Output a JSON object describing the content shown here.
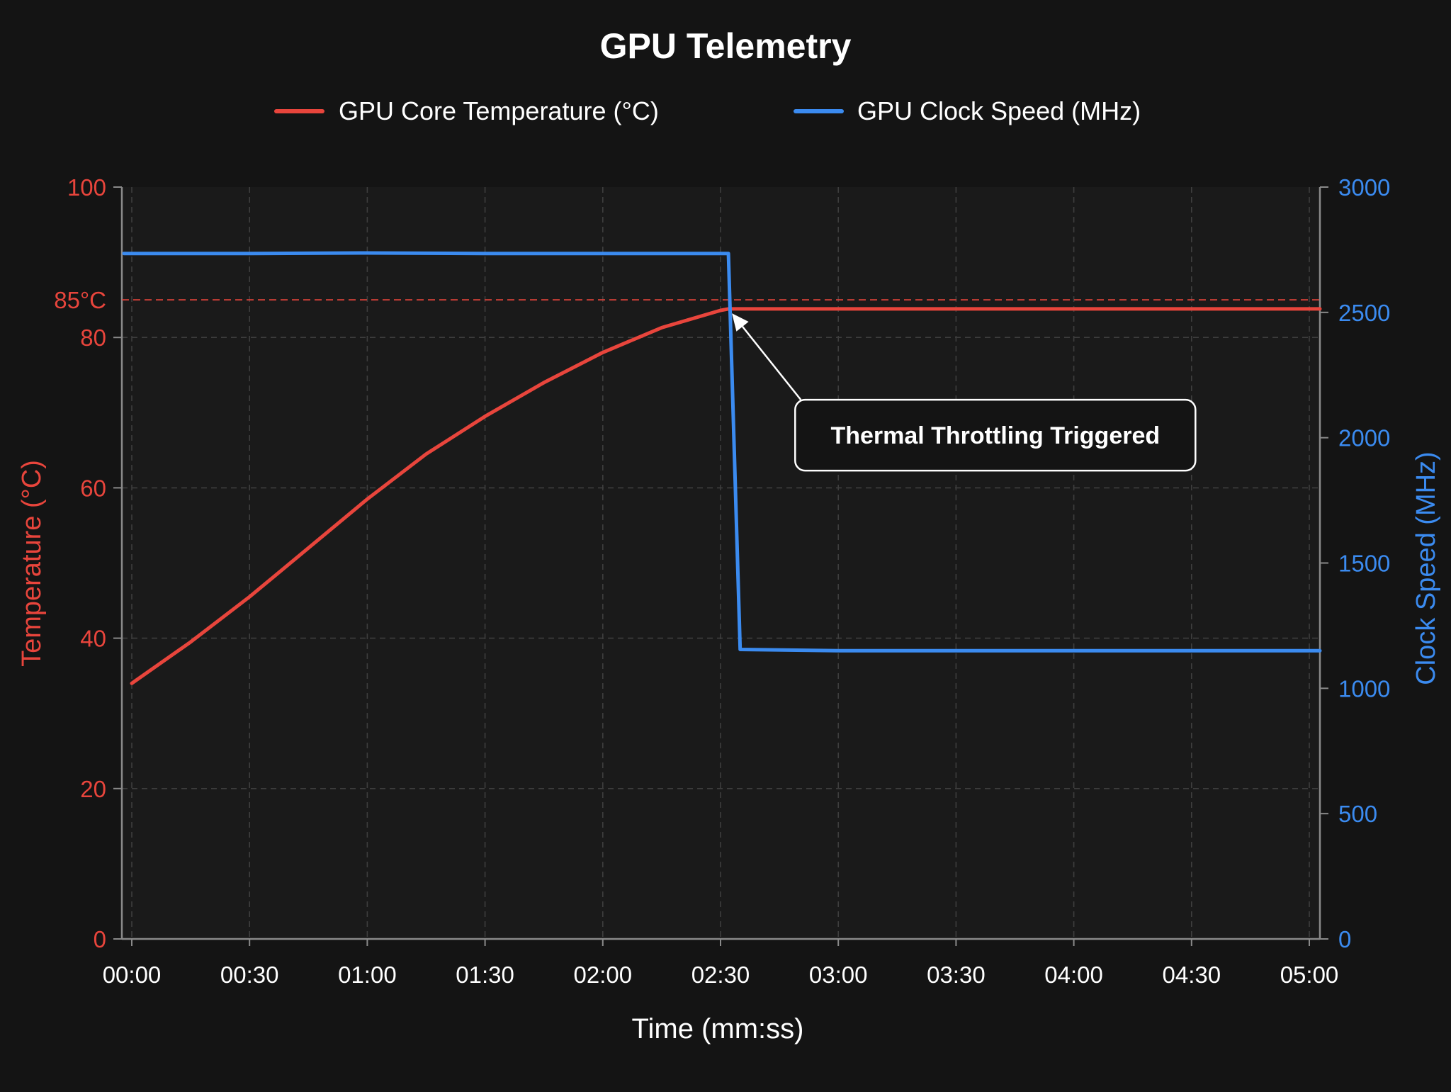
{
  "chart_data": {
    "type": "line",
    "title": "GPU Telemetry",
    "xlabel": "Time (mm:ss)",
    "ylabel_left": "Temperature (°C)",
    "ylabel_right": "Clock Speed (MHz)",
    "x_ticks": [
      "00:00",
      "00:30",
      "01:00",
      "01:30",
      "02:00",
      "02:30",
      "03:00",
      "03:30",
      "04:00",
      "04:30",
      "05:00"
    ],
    "xlim_seconds": [
      0,
      300
    ],
    "ylim_left": [
      0,
      100
    ],
    "ylim_right": [
      0,
      3000
    ],
    "y_ticks_left": [
      0,
      20,
      40,
      60,
      80,
      100
    ],
    "y_ticks_right": [
      0,
      500,
      1000,
      1500,
      2000,
      2500,
      3000
    ],
    "threshold": {
      "value": 85,
      "label": "85°C",
      "color": "#e8453c",
      "style": "dashed"
    },
    "legend_placement": "top-center",
    "grid": true,
    "series": [
      {
        "name": "GPU Core Temperature (°C)",
        "axis": "left",
        "color": "#e8453c",
        "x": [
          0,
          15,
          30,
          45,
          60,
          75,
          90,
          105,
          120,
          135,
          150,
          152,
          180,
          210,
          240,
          270,
          303
        ],
        "y": [
          34,
          39.5,
          45.5,
          52,
          58.5,
          64.5,
          69.5,
          74,
          78,
          81.3,
          83.6,
          83.8,
          83.8,
          83.8,
          83.8,
          83.8,
          83.8
        ]
      },
      {
        "name": "GPU Clock Speed (MHz)",
        "axis": "right",
        "color": "#3b8bf0",
        "x": [
          -2,
          30,
          60,
          90,
          120,
          150,
          152,
          155,
          180,
          210,
          240,
          270,
          303
        ],
        "y": [
          2735,
          2735,
          2737,
          2735,
          2735,
          2735,
          2735,
          1155,
          1150,
          1150,
          1150,
          1150,
          1150
        ]
      }
    ],
    "annotations": [
      {
        "text": "Thermal Throttling Triggered",
        "x": 152,
        "y": 83.8,
        "axis": "left",
        "text_x": 220,
        "text_y": 67
      }
    ]
  }
}
